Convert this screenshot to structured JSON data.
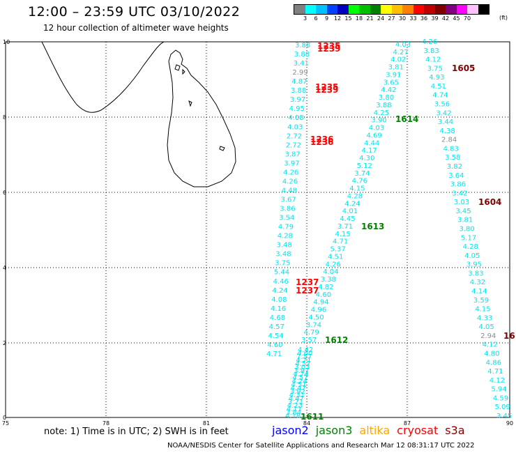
{
  "header": {
    "title": "12:00 – 23:59 UTC 03/10/2022",
    "subtitle": "12 hour collection of altimeter wave heights"
  },
  "colorbar": {
    "unit": "(ft)",
    "ticks": [
      "3",
      "6",
      "9",
      "12",
      "15",
      "18",
      "21",
      "24",
      "27",
      "30",
      "33",
      "36",
      "39",
      "42",
      "45",
      "70"
    ],
    "colors": [
      "#808080",
      "#00ffff",
      "#00c0ff",
      "#0040ff",
      "#0000c0",
      "#00ff00",
      "#00c000",
      "#008000",
      "#ffff00",
      "#ffc000",
      "#ff8000",
      "#ff0000",
      "#c00000",
      "#800000",
      "#800080",
      "#ff00ff",
      "#ffc0ff",
      "#000000"
    ]
  },
  "axes": {
    "x_ticks": [
      "75",
      "78",
      "81",
      "84",
      "87",
      "90"
    ],
    "y_ticks": [
      "0",
      "2",
      "4",
      "6",
      "8",
      "10"
    ]
  },
  "swh_values": {
    "jason3_track": [
      "3.57",
      "4.79",
      "3.74",
      "4.50",
      "4.96",
      "4.94",
      "4.60",
      "4.82",
      "3.38",
      "4.04",
      "4.26",
      "4.51",
      "5.37",
      "4.71",
      "4.15",
      "3.71",
      "4.45",
      "4.01",
      "4.24",
      "4.28",
      "4.15",
      "4.76",
      "3.74",
      "5.12",
      "4.30",
      "4.17",
      "4.44",
      "4.69",
      "4.03",
      "3.90",
      "4.25",
      "3.88",
      "3.80",
      "4.42",
      "3.65",
      "3.91",
      "3.81",
      "4.02",
      "4.27",
      "4.03"
    ],
    "jason3_lower": [
      "4.18",
      "3.84",
      "4.11",
      "4.23",
      "3.71",
      "4.47",
      "4.31",
      "3.92",
      "4.47",
      "4.51",
      "4.24",
      "4.57",
      "4.74",
      "3.97",
      "3.03",
      "4.57",
      "4.71",
      "7.57",
      "4.60",
      "4.42"
    ],
    "cryosat_track": [
      "4.26",
      "3.83",
      "4.12",
      "3.75",
      "4.93",
      "4.51",
      "4.74",
      "3.56",
      "3.42",
      "3.44",
      "4.38",
      "2.84",
      "4.83",
      "3.58",
      "3.82",
      "3.64",
      "3.86",
      "3.42",
      "3.03",
      "3.45",
      "3.81",
      "3.80",
      "5.17",
      "4.28",
      "4.05",
      "3.95",
      "3.83",
      "4.32",
      "4.14",
      "3.59",
      "4.15",
      "4.33",
      "4.05",
      "2.94",
      "4.12",
      "4.80",
      "4.86",
      "4.71",
      "4.12",
      "5.94",
      "4.59",
      "5.09",
      "3.45"
    ],
    "left_column": [
      "3.88",
      "3.88",
      "3.41",
      "2.99",
      "4.87",
      "3.88",
      "3.97",
      "4.95",
      "4.08",
      "4.03",
      "2.72",
      "2.72",
      "3.87",
      "3.97",
      "4.26",
      "4.26",
      "4.48",
      "3.67",
      "3.86",
      "3.54",
      "4.79",
      "4.28",
      "3.48",
      "3.48",
      "3.75",
      "5.44",
      "4.46",
      "4.24",
      "4.08",
      "4.16",
      "4.68",
      "4.57",
      "4.54",
      "4.60",
      "4.71"
    ]
  },
  "time_labels": [
    {
      "text": "1235",
      "color": "#ff0000"
    },
    {
      "text": "1239",
      "color": "#ff0000"
    },
    {
      "text": "1235",
      "color": "#ff0000"
    },
    {
      "text": "1239",
      "color": "#ff0000"
    },
    {
      "text": "1236",
      "color": "#ff0000"
    },
    {
      "text": "1236",
      "color": "#ff0000"
    },
    {
      "text": "1237",
      "color": "#ff0000"
    },
    {
      "text": "1237",
      "color": "#ff0000"
    },
    {
      "text": "1614",
      "color": "#008000"
    },
    {
      "text": "1613",
      "color": "#008000"
    },
    {
      "text": "1612",
      "color": "#008000"
    },
    {
      "text": "1611",
      "color": "#008000"
    },
    {
      "text": "1605",
      "color": "#800000"
    },
    {
      "text": "1604",
      "color": "#800000"
    },
    {
      "text": "16",
      "color": "#800000"
    }
  ],
  "note": "note: 1) Time is in UTC; 2) SWH is in feet",
  "legend": [
    {
      "label": "jason2",
      "color": "#0000ff"
    },
    {
      "label": "jason3",
      "color": "#008000"
    },
    {
      "label": "altika",
      "color": "#ffa500"
    },
    {
      "label": "cryosat",
      "color": "#ff0000"
    },
    {
      "label": "s3a",
      "color": "#800000"
    }
  ],
  "footer": "NOAA/NESDIS Center for Satellite Applications and Research   Mar 12 08:31:17 UTC 2022"
}
